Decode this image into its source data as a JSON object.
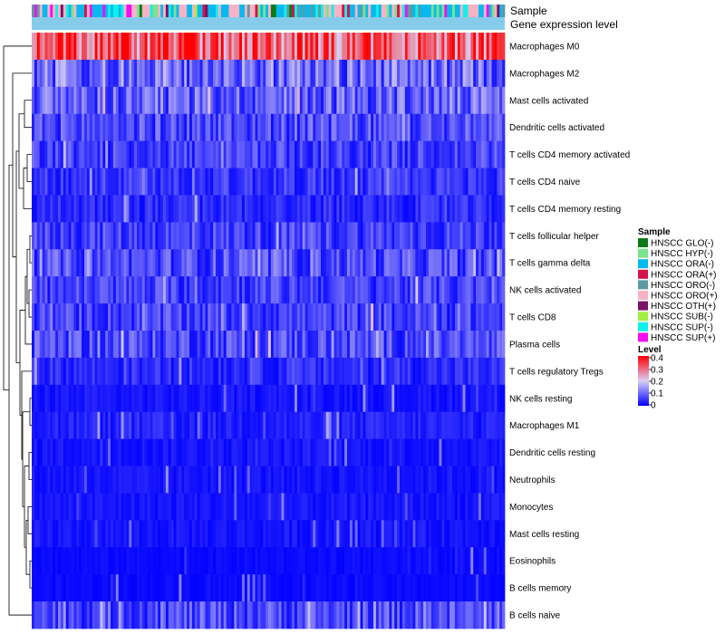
{
  "chart_data": {
    "type": "heatmap",
    "title": "",
    "annotation_tracks": [
      "Sample",
      "Gene expression level"
    ],
    "rows": [
      "Macrophages M0",
      "Macrophages M2",
      "Mast cells activated",
      "Dendritic cells activated",
      "T cells CD4 memory activated",
      "T cells CD4 naive",
      "T cells CD4 memory resting",
      "T cells follicular helper",
      "T cells gamma delta",
      "NK cells activated",
      "T cells CD8",
      "Plasma cells",
      "T cells regulatory  Tregs",
      "NK cells resting",
      "Macrophages M1",
      "Dendritic cells resting",
      "Neutrophils",
      "Monocytes",
      "Mast cells resting",
      "Eosinophils",
      "B cells memory",
      "B cells naive"
    ],
    "row_mean_levels": [
      0.3,
      0.1,
      0.09,
      0.07,
      0.06,
      0.05,
      0.04,
      0.06,
      0.07,
      0.06,
      0.06,
      0.07,
      0.04,
      0.02,
      0.03,
      0.02,
      0.02,
      0.02,
      0.02,
      0.01,
      0.01,
      0.07
    ],
    "num_samples": 180,
    "color_scale": {
      "title": "Level",
      "ticks": [
        "0.4",
        "0.3",
        "0.2",
        "0.1",
        "0"
      ],
      "range": [
        0,
        0.4
      ],
      "stops": [
        "#0000ff",
        "#d8d0f5",
        "#ff0000"
      ]
    },
    "gene_expression_level_color": "#86cbea",
    "sample_legend": {
      "title": "Sample",
      "entries": [
        {
          "label": "HNSCC GLO(-)",
          "color": "#0a7a16"
        },
        {
          "label": "HNSCC HYP(-)",
          "color": "#7be28f"
        },
        {
          "label": "HNSCC ORA(-)",
          "color": "#06b9ee"
        },
        {
          "label": "HNSCC ORA(+)",
          "color": "#d31449"
        },
        {
          "label": "HNSCC ORO(-)",
          "color": "#5c9aa3"
        },
        {
          "label": "HNSCC ORO(+)",
          "color": "#f7b3c6"
        },
        {
          "label": "HNSCC OTH(+)",
          "color": "#7a1266"
        },
        {
          "label": "HNSCC SUB(-)",
          "color": "#a3ef3f"
        },
        {
          "label": "HNSCC SUP(-)",
          "color": "#10f0ea"
        },
        {
          "label": "HNSCC SUP(+)",
          "color": "#f20ff0"
        }
      ],
      "weights": [
        3,
        10,
        30,
        4,
        6,
        28,
        2,
        3,
        12,
        2
      ]
    }
  }
}
